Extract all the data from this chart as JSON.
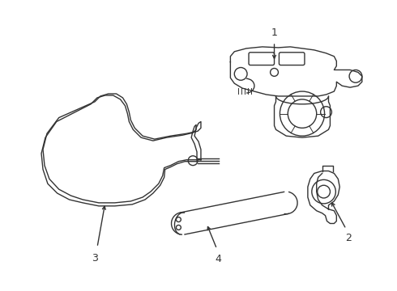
{
  "bg_color": "#ffffff",
  "line_color": "#333333",
  "line_width": 1.0,
  "figsize": [
    4.9,
    3.6
  ],
  "dpi": 100
}
